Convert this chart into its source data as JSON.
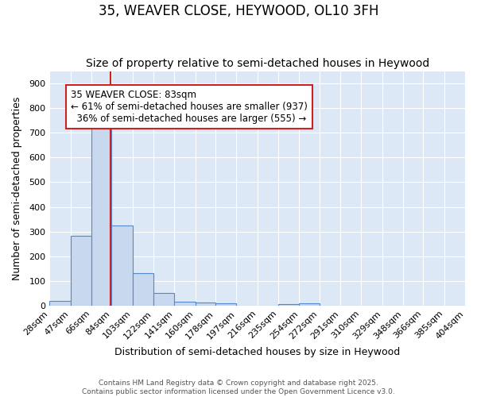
{
  "title_line1": "35, WEAVER CLOSE, HEYWOOD, OL10 3FH",
  "title_line2": "Size of property relative to semi-detached houses in Heywood",
  "xlabel": "Distribution of semi-detached houses by size in Heywood",
  "ylabel": "Number of semi-detached properties",
  "bin_labels": [
    "28sqm",
    "47sqm",
    "66sqm",
    "84sqm",
    "103sqm",
    "122sqm",
    "141sqm",
    "160sqm",
    "178sqm",
    "197sqm",
    "216sqm",
    "235sqm",
    "254sqm",
    "272sqm",
    "291sqm",
    "310sqm",
    "329sqm",
    "348sqm",
    "366sqm",
    "385sqm",
    "404sqm"
  ],
  "bin_edges": [
    28,
    47,
    66,
    84,
    103,
    122,
    141,
    160,
    178,
    197,
    216,
    235,
    254,
    272,
    291,
    310,
    329,
    348,
    366,
    385,
    404
  ],
  "bar_values": [
    18,
    283,
    717,
    325,
    130,
    52,
    15,
    13,
    8,
    0,
    0,
    5,
    8,
    0,
    0,
    0,
    0,
    0,
    0,
    0
  ],
  "bar_color": "#c8d8ee",
  "bar_edge_color": "#5588cc",
  "property_size": 83,
  "vline_color": "#cc2222",
  "annotation_line1": "35 WEAVER CLOSE: 83sqm",
  "annotation_line2": "← 61% of semi-detached houses are smaller (937)",
  "annotation_line3": "  36% of semi-detached houses are larger (555) →",
  "annotation_box_color": "#ffffff",
  "annotation_box_edge_color": "#cc2222",
  "background_color": "#dce8f5",
  "fig_background_color": "#ffffff",
  "grid_color": "#ffffff",
  "ylim": [
    0,
    950
  ],
  "yticks": [
    0,
    100,
    200,
    300,
    400,
    500,
    600,
    700,
    800,
    900
  ],
  "footer_text": "Contains HM Land Registry data © Crown copyright and database right 2025.\nContains public sector information licensed under the Open Government Licence v3.0.",
  "title_fontsize": 12,
  "subtitle_fontsize": 10,
  "axis_label_fontsize": 9,
  "tick_fontsize": 8,
  "annotation_fontsize": 8.5
}
